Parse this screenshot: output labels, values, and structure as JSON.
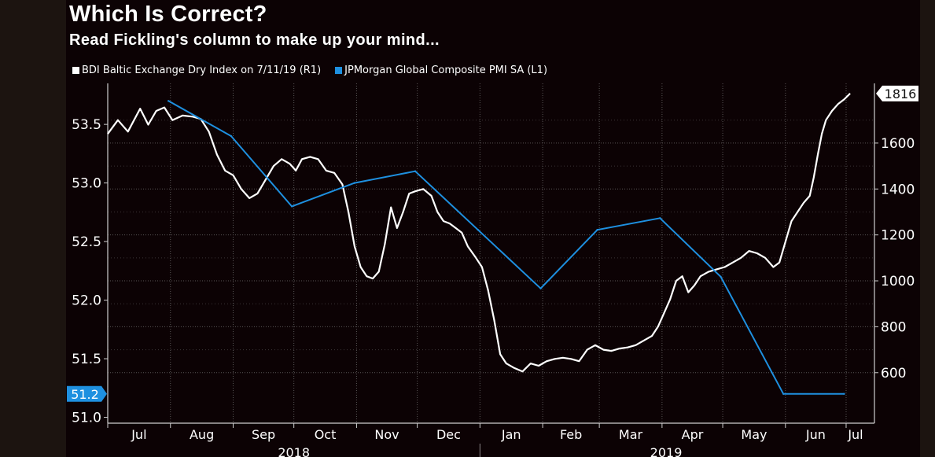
{
  "header": {
    "title": "Which Is Correct?",
    "subtitle": "Read Fickling's column to make up your mind..."
  },
  "chart_data": {
    "type": "line",
    "title": "Which Is Correct?",
    "subtitle": "Read Fickling's column to make up your mind...",
    "months": [
      "Jul",
      "Aug",
      "Sep",
      "Oct",
      "Nov",
      "Dec",
      "Jan",
      "Feb",
      "Mar",
      "Apr",
      "May",
      "Jun",
      "Jul"
    ],
    "years": [
      "2018",
      "2019"
    ],
    "x_range": [
      "2018-07-01",
      "2019-07-15"
    ],
    "left_axis": {
      "label": "L1",
      "range": [
        50.95,
        53.85
      ],
      "ticks": [
        "51.0",
        "51.5",
        "52.0",
        "52.5",
        "53.0",
        "53.5"
      ]
    },
    "right_axis": {
      "label": "R1",
      "range": [
        380,
        1860
      ],
      "ticks": [
        "600",
        "800",
        "1000",
        "1200",
        "1400",
        "1600"
      ]
    },
    "series": [
      {
        "name": "BDI Baltic Exchange Dry Index on 7/11/19 (R1)",
        "axis": "right",
        "color": "#ffffff",
        "last_value_label": "1816",
        "points": [
          [
            0,
            1640
          ],
          [
            5,
            1700
          ],
          [
            10,
            1650
          ],
          [
            16,
            1750
          ],
          [
            20,
            1680
          ],
          [
            24,
            1740
          ],
          [
            28,
            1755
          ],
          [
            32,
            1700
          ],
          [
            37,
            1720
          ],
          [
            42,
            1715
          ],
          [
            46,
            1705
          ],
          [
            50,
            1650
          ],
          [
            54,
            1550
          ],
          [
            58,
            1480
          ],
          [
            62,
            1460
          ],
          [
            66,
            1400
          ],
          [
            70,
            1360
          ],
          [
            74,
            1380
          ],
          [
            78,
            1440
          ],
          [
            82,
            1500
          ],
          [
            86,
            1530
          ],
          [
            90,
            1510
          ],
          [
            93,
            1480
          ],
          [
            96,
            1530
          ],
          [
            100,
            1540
          ],
          [
            104,
            1530
          ],
          [
            108,
            1480
          ],
          [
            112,
            1470
          ],
          [
            116,
            1420
          ],
          [
            119,
            1300
          ],
          [
            122,
            1150
          ],
          [
            125,
            1060
          ],
          [
            128,
            1020
          ],
          [
            131,
            1010
          ],
          [
            134,
            1040
          ],
          [
            137,
            1160
          ],
          [
            140,
            1320
          ],
          [
            143,
            1230
          ],
          [
            146,
            1300
          ],
          [
            149,
            1380
          ],
          [
            152,
            1390
          ],
          [
            156,
            1400
          ],
          [
            160,
            1370
          ],
          [
            163,
            1300
          ],
          [
            166,
            1260
          ],
          [
            169,
            1250
          ],
          [
            172,
            1230
          ],
          [
            175,
            1210
          ],
          [
            178,
            1150
          ],
          [
            182,
            1100
          ],
          [
            185,
            1060
          ],
          [
            188,
            960
          ],
          [
            191,
            830
          ],
          [
            194,
            680
          ],
          [
            197,
            640
          ],
          [
            201,
            620
          ],
          [
            205,
            605
          ],
          [
            209,
            640
          ],
          [
            213,
            630
          ],
          [
            217,
            650
          ],
          [
            221,
            660
          ],
          [
            225,
            665
          ],
          [
            229,
            660
          ],
          [
            233,
            650
          ],
          [
            237,
            700
          ],
          [
            241,
            720
          ],
          [
            245,
            700
          ],
          [
            249,
            695
          ],
          [
            253,
            705
          ],
          [
            257,
            710
          ],
          [
            261,
            720
          ],
          [
            265,
            740
          ],
          [
            269,
            760
          ],
          [
            272,
            800
          ],
          [
            275,
            860
          ],
          [
            278,
            920
          ],
          [
            281,
            1000
          ],
          [
            284,
            1020
          ],
          [
            287,
            950
          ],
          [
            290,
            980
          ],
          [
            293,
            1020
          ],
          [
            297,
            1040
          ],
          [
            301,
            1050
          ],
          [
            305,
            1060
          ],
          [
            309,
            1080
          ],
          [
            313,
            1100
          ],
          [
            317,
            1130
          ],
          [
            321,
            1120
          ],
          [
            325,
            1100
          ],
          [
            329,
            1060
          ],
          [
            332,
            1080
          ],
          [
            335,
            1170
          ],
          [
            338,
            1260
          ],
          [
            341,
            1300
          ],
          [
            344,
            1340
          ],
          [
            347,
            1370
          ],
          [
            349,
            1450
          ],
          [
            351,
            1550
          ],
          [
            353,
            1640
          ],
          [
            355,
            1700
          ],
          [
            358,
            1740
          ],
          [
            361,
            1770
          ],
          [
            364,
            1790
          ],
          [
            367,
            1816
          ]
        ]
      },
      {
        "name": "JPMorgan Global Composite PMI SA (L1)",
        "axis": "left",
        "color": "#1e90e0",
        "last_value_label": "51.2",
        "points": [
          [
            "2018-07-31",
            53.7
          ],
          [
            "2018-08-31",
            53.4
          ],
          [
            "2018-09-30",
            52.8
          ],
          [
            "2018-10-31",
            53.0
          ],
          [
            "2018-11-30",
            53.1
          ],
          [
            "2018-12-31",
            52.6
          ],
          [
            "2019-01-31",
            52.1
          ],
          [
            "2019-02-28",
            52.6
          ],
          [
            "2019-03-31",
            52.7
          ],
          [
            "2019-04-30",
            52.2
          ],
          [
            "2019-05-31",
            51.2
          ],
          [
            "2019-06-30",
            51.2
          ]
        ]
      }
    ],
    "pmi_x_days": [
      30,
      61,
      91,
      122,
      152,
      183,
      214,
      242,
      273,
      303,
      334,
      364
    ]
  }
}
